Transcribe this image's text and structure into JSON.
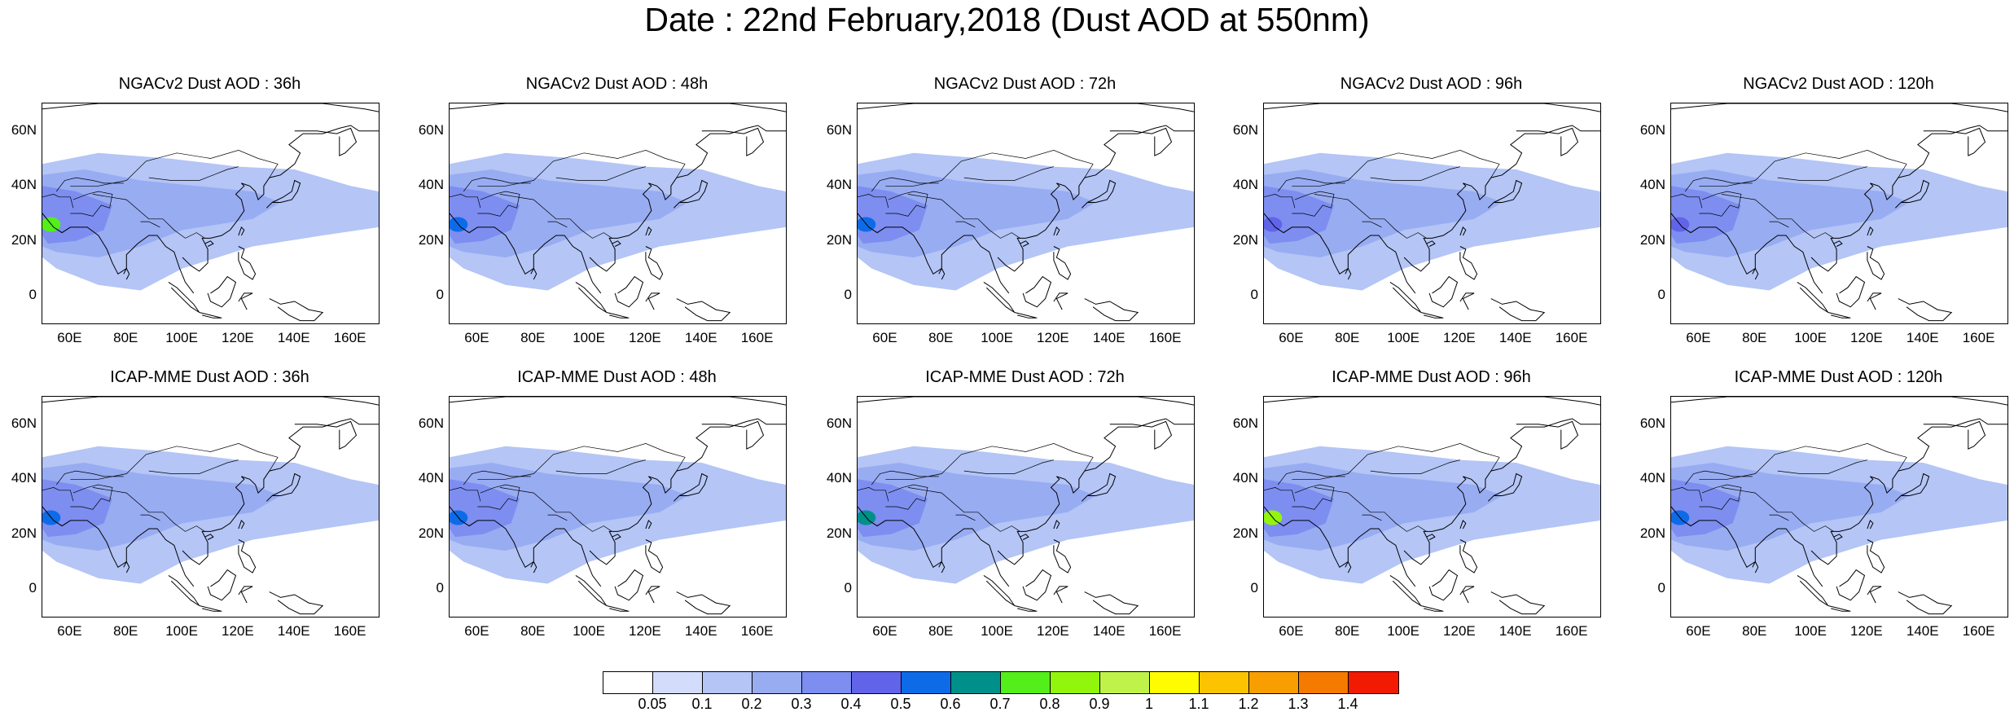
{
  "title": "Date : 22nd February,2018 (Dust AOD at 550nm)",
  "panels": [
    {
      "title": "NGACv2 Dust AOD : 36h",
      "model": "NGACv2",
      "lead": "36h",
      "hotspot_level": 0.7
    },
    {
      "title": "NGACv2 Dust AOD : 48h",
      "model": "NGACv2",
      "lead": "48h",
      "hotspot_level": 0.5
    },
    {
      "title": "NGACv2 Dust AOD : 72h",
      "model": "NGACv2",
      "lead": "72h",
      "hotspot_level": 0.5
    },
    {
      "title": "NGACv2 Dust AOD : 96h",
      "model": "NGACv2",
      "lead": "96h",
      "hotspot_level": 0.4
    },
    {
      "title": "NGACv2 Dust AOD : 120h",
      "model": "NGACv2",
      "lead": "120h",
      "hotspot_level": 0.4
    },
    {
      "title": "ICAP-MME Dust AOD : 36h",
      "model": "ICAP-MME",
      "lead": "36h",
      "hotspot_level": 0.5
    },
    {
      "title": "ICAP-MME Dust AOD : 48h",
      "model": "ICAP-MME",
      "lead": "48h",
      "hotspot_level": 0.5
    },
    {
      "title": "ICAP-MME Dust AOD : 72h",
      "model": "ICAP-MME",
      "lead": "72h",
      "hotspot_level": 0.6
    },
    {
      "title": "ICAP-MME Dust AOD : 96h",
      "model": "ICAP-MME",
      "lead": "96h",
      "hotspot_level": 0.8
    },
    {
      "title": "ICAP-MME Dust AOD : 120h",
      "model": "ICAP-MME",
      "lead": "120h",
      "hotspot_level": 0.5
    }
  ],
  "lat_ticks": [
    "60N",
    "40N",
    "20N",
    "0"
  ],
  "lon_ticks": [
    "60E",
    "80E",
    "100E",
    "120E",
    "140E",
    "160E"
  ],
  "lat_range": [
    -10,
    70
  ],
  "lon_range": [
    50,
    170
  ],
  "colorbar": {
    "labels": [
      "0.05",
      "0.1",
      "0.2",
      "0.3",
      "0.4",
      "0.5",
      "0.6",
      "0.7",
      "0.8",
      "0.9",
      "1",
      "1.1",
      "1.2",
      "1.3",
      "1.4"
    ],
    "colors": [
      "#ffffff",
      "#d3ddfb",
      "#b4c5f6",
      "#98acf2",
      "#7d8ef0",
      "#6164e9",
      "#0e6be8",
      "#00908a",
      "#54ee1a",
      "#92f50c",
      "#bff349",
      "#fffc00",
      "#fbc300",
      "#f99e00",
      "#f57a00",
      "#f21a00"
    ]
  }
}
